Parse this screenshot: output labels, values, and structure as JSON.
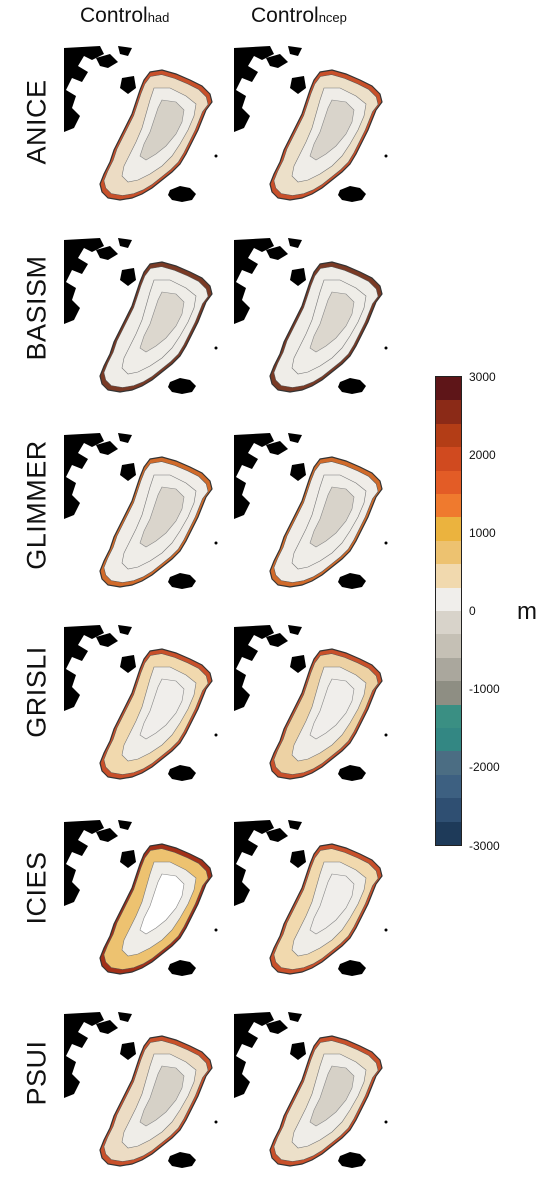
{
  "columns": [
    {
      "main": "Control",
      "sub": "had"
    },
    {
      "main": "Control",
      "sub": "ncep"
    }
  ],
  "rows": [
    "ANICE",
    "BASISM",
    "GLIMMER",
    "GRISLI",
    "ICIES",
    "PSUI"
  ],
  "colorbar": {
    "ticks": [
      "3000",
      "2000",
      "1000",
      "0",
      "-1000",
      "-2000",
      "-3000"
    ],
    "unit": "m",
    "colors_top_to_bottom": [
      "#5e1518",
      "#8b2a17",
      "#b33d16",
      "#d04a1f",
      "#e35c26",
      "#ef7a2e",
      "#ebb33e",
      "#edc270",
      "#f1d9ae",
      "#f0eeeb",
      "#d8d3ca",
      "#c5c0b5",
      "#aaa79d",
      "#8e8e83",
      "#3a8f83",
      "#338783",
      "#4b6d83",
      "#3d6081",
      "#2f4f72",
      "#1e3a59"
    ]
  },
  "panel_styles": {
    "ANICE": [
      {
        "interior": "#d6d1c7",
        "rim": "#ecdcc4",
        "edge": "#c8502a"
      },
      {
        "interior": "#d9d4cb",
        "rim": "#ece0c9",
        "edge": "#c8502a"
      }
    ],
    "BASISM": [
      {
        "interior": "#dcd7ce",
        "rim": "#efede8",
        "edge": "#7a3a25"
      },
      {
        "interior": "#dcd7ce",
        "rim": "#efede8",
        "edge": "#7a3a25"
      }
    ],
    "GLIMMER": [
      {
        "interior": "#dad5cc",
        "rim": "#f0ede8",
        "edge": "#d06a2a"
      },
      {
        "interior": "#d8d3ca",
        "rim": "#f0ede8",
        "edge": "#d06a2a"
      }
    ],
    "GRISLI": [
      {
        "interior": "#f0eeeb",
        "rim": "#f1d9ae",
        "edge": "#c8502a"
      },
      {
        "interior": "#f0eeeb",
        "rim": "#edd2a4",
        "edge": "#c8502a"
      }
    ],
    "ICIES": [
      {
        "interior": "#ffffff",
        "rim": "#edc270",
        "edge": "#a33018"
      },
      {
        "interior": "#f0eeeb",
        "rim": "#f1d9ae",
        "edge": "#c8502a"
      }
    ],
    "PSUI": [
      {
        "interior": "#d6d1c7",
        "rim": "#ecdcc4",
        "edge": "#c8502a"
      },
      {
        "interior": "#d6d1c7",
        "rim": "#ece0c9",
        "edge": "#c8502a"
      }
    ]
  }
}
